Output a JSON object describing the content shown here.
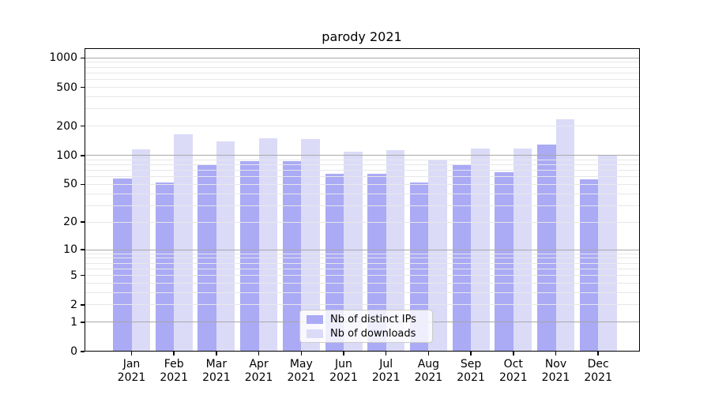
{
  "chart_data": {
    "type": "bar",
    "title": "parody 2021",
    "y_scale": "log1p",
    "ylim": [
      0,
      1258
    ],
    "y_ticks_labeled": [
      0,
      1,
      2,
      5,
      10,
      20,
      50,
      100,
      200,
      500,
      1000
    ],
    "y_gridlines_major": [
      1,
      10,
      100,
      1000
    ],
    "y_minor_subs": [
      2,
      3,
      4,
      5,
      6,
      7,
      8,
      9
    ],
    "y_minor_decades": [
      1,
      10,
      100
    ],
    "grid": "on",
    "categories": [
      "Jan",
      "Feb",
      "Mar",
      "Apr",
      "May",
      "Jun",
      "Jul",
      "Aug",
      "Sep",
      "Oct",
      "Nov",
      "Dec"
    ],
    "category_year": "2021",
    "series": [
      {
        "name": "Nb of distinct IPs",
        "color": "#aaaaf5",
        "values": [
          58,
          52,
          79,
          88,
          87,
          65,
          65,
          52,
          80,
          67,
          130,
          56
        ]
      },
      {
        "name": "Nb of downloads",
        "color": "#dbdbf8",
        "values": [
          115,
          165,
          139,
          150,
          148,
          110,
          113,
          91,
          118,
          118,
          235,
          99
        ]
      }
    ],
    "legend": {
      "position": "lower center"
    },
    "colors": {
      "grid_major": "#a8a8a8",
      "grid_minor": "#e7e7ea",
      "spine": "#000000",
      "text": "#000000",
      "background": "#ffffff"
    }
  }
}
